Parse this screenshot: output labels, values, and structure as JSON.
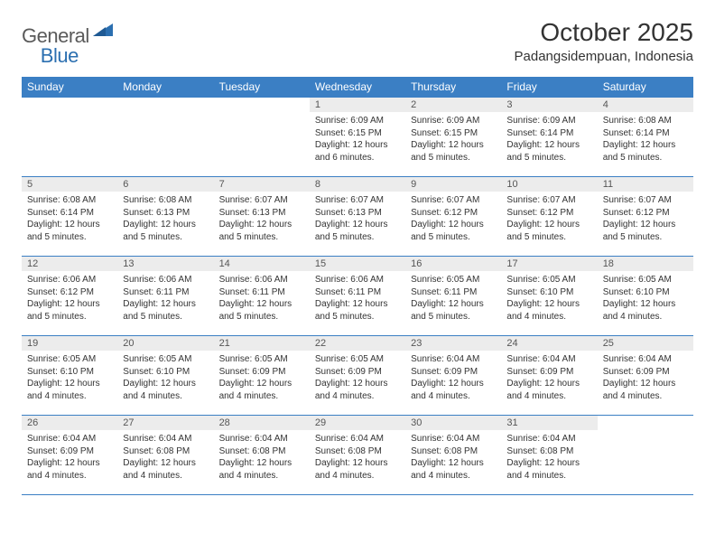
{
  "brand": {
    "general": "General",
    "blue": "Blue"
  },
  "title": "October 2025",
  "location": "Padangsidempuan, Indonesia",
  "colors": {
    "header_bg": "#3b7fc4",
    "header_text": "#ffffff",
    "row_divider": "#3b7fc4",
    "daynum_bg": "#ececec",
    "text": "#333333",
    "logo_gray": "#5a5a5a",
    "logo_blue": "#2b6fb0"
  },
  "typography": {
    "title_fontsize": 28,
    "location_fontsize": 15,
    "weekday_fontsize": 12,
    "daynum_fontsize": 11,
    "body_fontsize": 10
  },
  "weekdays": [
    "Sunday",
    "Monday",
    "Tuesday",
    "Wednesday",
    "Thursday",
    "Friday",
    "Saturday"
  ],
  "weeks": [
    [
      {
        "blank": true
      },
      {
        "blank": true
      },
      {
        "blank": true
      },
      {
        "day": "1",
        "sunrise": "Sunrise: 6:09 AM",
        "sunset": "Sunset: 6:15 PM",
        "daylight": "Daylight: 12 hours and 6 minutes."
      },
      {
        "day": "2",
        "sunrise": "Sunrise: 6:09 AM",
        "sunset": "Sunset: 6:15 PM",
        "daylight": "Daylight: 12 hours and 5 minutes."
      },
      {
        "day": "3",
        "sunrise": "Sunrise: 6:09 AM",
        "sunset": "Sunset: 6:14 PM",
        "daylight": "Daylight: 12 hours and 5 minutes."
      },
      {
        "day": "4",
        "sunrise": "Sunrise: 6:08 AM",
        "sunset": "Sunset: 6:14 PM",
        "daylight": "Daylight: 12 hours and 5 minutes."
      }
    ],
    [
      {
        "day": "5",
        "sunrise": "Sunrise: 6:08 AM",
        "sunset": "Sunset: 6:14 PM",
        "daylight": "Daylight: 12 hours and 5 minutes."
      },
      {
        "day": "6",
        "sunrise": "Sunrise: 6:08 AM",
        "sunset": "Sunset: 6:13 PM",
        "daylight": "Daylight: 12 hours and 5 minutes."
      },
      {
        "day": "7",
        "sunrise": "Sunrise: 6:07 AM",
        "sunset": "Sunset: 6:13 PM",
        "daylight": "Daylight: 12 hours and 5 minutes."
      },
      {
        "day": "8",
        "sunrise": "Sunrise: 6:07 AM",
        "sunset": "Sunset: 6:13 PM",
        "daylight": "Daylight: 12 hours and 5 minutes."
      },
      {
        "day": "9",
        "sunrise": "Sunrise: 6:07 AM",
        "sunset": "Sunset: 6:12 PM",
        "daylight": "Daylight: 12 hours and 5 minutes."
      },
      {
        "day": "10",
        "sunrise": "Sunrise: 6:07 AM",
        "sunset": "Sunset: 6:12 PM",
        "daylight": "Daylight: 12 hours and 5 minutes."
      },
      {
        "day": "11",
        "sunrise": "Sunrise: 6:07 AM",
        "sunset": "Sunset: 6:12 PM",
        "daylight": "Daylight: 12 hours and 5 minutes."
      }
    ],
    [
      {
        "day": "12",
        "sunrise": "Sunrise: 6:06 AM",
        "sunset": "Sunset: 6:12 PM",
        "daylight": "Daylight: 12 hours and 5 minutes."
      },
      {
        "day": "13",
        "sunrise": "Sunrise: 6:06 AM",
        "sunset": "Sunset: 6:11 PM",
        "daylight": "Daylight: 12 hours and 5 minutes."
      },
      {
        "day": "14",
        "sunrise": "Sunrise: 6:06 AM",
        "sunset": "Sunset: 6:11 PM",
        "daylight": "Daylight: 12 hours and 5 minutes."
      },
      {
        "day": "15",
        "sunrise": "Sunrise: 6:06 AM",
        "sunset": "Sunset: 6:11 PM",
        "daylight": "Daylight: 12 hours and 5 minutes."
      },
      {
        "day": "16",
        "sunrise": "Sunrise: 6:05 AM",
        "sunset": "Sunset: 6:11 PM",
        "daylight": "Daylight: 12 hours and 5 minutes."
      },
      {
        "day": "17",
        "sunrise": "Sunrise: 6:05 AM",
        "sunset": "Sunset: 6:10 PM",
        "daylight": "Daylight: 12 hours and 4 minutes."
      },
      {
        "day": "18",
        "sunrise": "Sunrise: 6:05 AM",
        "sunset": "Sunset: 6:10 PM",
        "daylight": "Daylight: 12 hours and 4 minutes."
      }
    ],
    [
      {
        "day": "19",
        "sunrise": "Sunrise: 6:05 AM",
        "sunset": "Sunset: 6:10 PM",
        "daylight": "Daylight: 12 hours and 4 minutes."
      },
      {
        "day": "20",
        "sunrise": "Sunrise: 6:05 AM",
        "sunset": "Sunset: 6:10 PM",
        "daylight": "Daylight: 12 hours and 4 minutes."
      },
      {
        "day": "21",
        "sunrise": "Sunrise: 6:05 AM",
        "sunset": "Sunset: 6:09 PM",
        "daylight": "Daylight: 12 hours and 4 minutes."
      },
      {
        "day": "22",
        "sunrise": "Sunrise: 6:05 AM",
        "sunset": "Sunset: 6:09 PM",
        "daylight": "Daylight: 12 hours and 4 minutes."
      },
      {
        "day": "23",
        "sunrise": "Sunrise: 6:04 AM",
        "sunset": "Sunset: 6:09 PM",
        "daylight": "Daylight: 12 hours and 4 minutes."
      },
      {
        "day": "24",
        "sunrise": "Sunrise: 6:04 AM",
        "sunset": "Sunset: 6:09 PM",
        "daylight": "Daylight: 12 hours and 4 minutes."
      },
      {
        "day": "25",
        "sunrise": "Sunrise: 6:04 AM",
        "sunset": "Sunset: 6:09 PM",
        "daylight": "Daylight: 12 hours and 4 minutes."
      }
    ],
    [
      {
        "day": "26",
        "sunrise": "Sunrise: 6:04 AM",
        "sunset": "Sunset: 6:09 PM",
        "daylight": "Daylight: 12 hours and 4 minutes."
      },
      {
        "day": "27",
        "sunrise": "Sunrise: 6:04 AM",
        "sunset": "Sunset: 6:08 PM",
        "daylight": "Daylight: 12 hours and 4 minutes."
      },
      {
        "day": "28",
        "sunrise": "Sunrise: 6:04 AM",
        "sunset": "Sunset: 6:08 PM",
        "daylight": "Daylight: 12 hours and 4 minutes."
      },
      {
        "day": "29",
        "sunrise": "Sunrise: 6:04 AM",
        "sunset": "Sunset: 6:08 PM",
        "daylight": "Daylight: 12 hours and 4 minutes."
      },
      {
        "day": "30",
        "sunrise": "Sunrise: 6:04 AM",
        "sunset": "Sunset: 6:08 PM",
        "daylight": "Daylight: 12 hours and 4 minutes."
      },
      {
        "day": "31",
        "sunrise": "Sunrise: 6:04 AM",
        "sunset": "Sunset: 6:08 PM",
        "daylight": "Daylight: 12 hours and 4 minutes."
      },
      {
        "blank": true
      }
    ]
  ]
}
